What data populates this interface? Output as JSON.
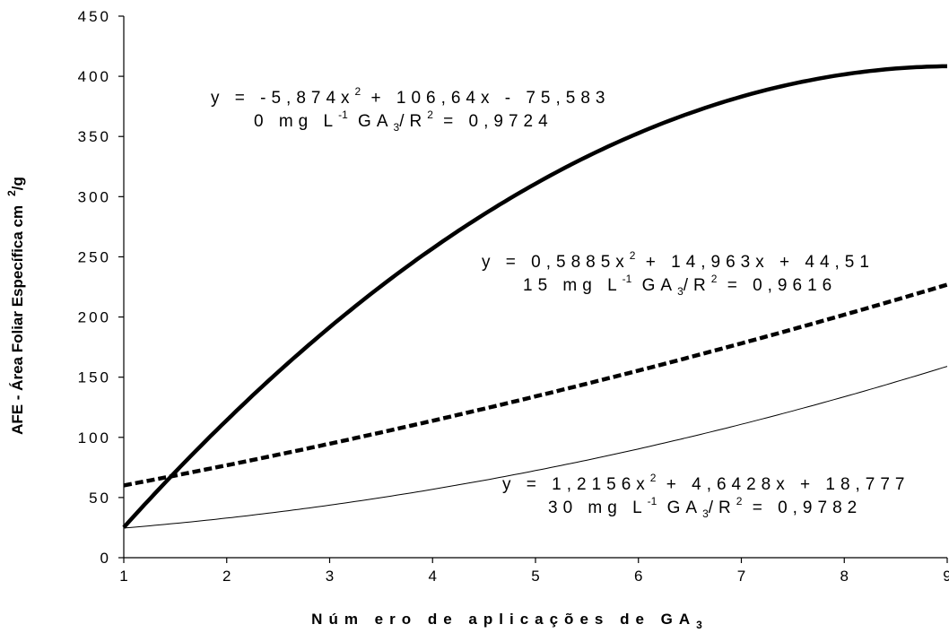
{
  "chart_data": {
    "type": "line",
    "title": "",
    "xlabel": "Núm ero de aplicações de GA",
    "xlabel_subscript": "3",
    "ylabel": "AFE - Área Foliar Específica cm",
    "ylabel_superscript": "2",
    "ylabel_suffix": "/g",
    "xlim": [
      1,
      9
    ],
    "ylim": [
      0,
      450
    ],
    "x_ticks": [
      "1",
      "2",
      "3",
      "4",
      "5",
      "6",
      "7",
      "8",
      "9"
    ],
    "y_ticks": [
      "0",
      "50",
      "100",
      "150",
      "200",
      "250",
      "300",
      "350",
      "400",
      "450"
    ],
    "grid": false,
    "legend": "none",
    "series": [
      {
        "style": "thick-solid",
        "coefficients": [
          -5.874,
          106.64,
          -75.583
        ],
        "equation": {
          "main": "y = -5,874x",
          "sup": "2",
          "rest": " + 106,64x - 75,583"
        },
        "label": {
          "pre": "0 mg L",
          "sup1": "-1",
          "mid": " GA",
          "sub": "3",
          "post": "/R",
          "sup2": "2",
          "end": " = 0,9724"
        }
      },
      {
        "style": "dashed",
        "coefficients": [
          0.5885,
          14.963,
          44.51
        ],
        "equation": {
          "main": "y = 0,5885x",
          "sup": "2",
          "rest": " + 14,963x + 44,51"
        },
        "label": {
          "pre": "15 mg L",
          "sup1": "-1",
          "mid": " GA",
          "sub": "3",
          "post": "/R",
          "sup2": "2",
          "end": " = 0,9616"
        }
      },
      {
        "style": "thin-solid",
        "coefficients": [
          1.2156,
          4.6428,
          18.777
        ],
        "equation": {
          "main": "y = 1,2156x",
          "sup": "2",
          "rest": " + 4,6428x + 18,777"
        },
        "label": {
          "pre": "30 mg L",
          "sup1": "-1",
          "mid": " GA",
          "sub": "3",
          "post": "/R",
          "sup2": "2",
          "end": " = 0,9782"
        }
      }
    ]
  }
}
